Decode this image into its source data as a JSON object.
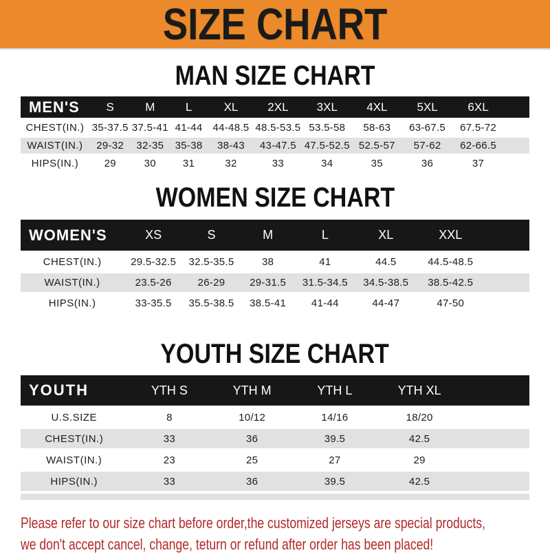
{
  "banner": {
    "title": "SIZE CHART"
  },
  "colors": {
    "banner_bg": "#EC8A2B",
    "banner_text": "#1A1A1A",
    "table_header_bg": "#171717",
    "table_header_text": "#FFFFFF",
    "row_stripe_bg": "#E1E1E1",
    "footer_text": "#B22A2A"
  },
  "sections": [
    {
      "id": "men",
      "heading": "MAN SIZE CHART",
      "header_label": "MEN'S",
      "columns": [
        "S",
        "M",
        "L",
        "XL",
        "2XL",
        "3XL",
        "4XL",
        "5XL",
        "6XL"
      ],
      "rows": [
        {
          "label": "CHEST(IN.)",
          "values": [
            "35-37.5",
            "37.5-41",
            "41-44",
            "44-48.5",
            "48.5-53.5",
            "53.5-58",
            "58-63",
            "63-67.5",
            "67.5-72"
          ]
        },
        {
          "label": "WAIST(IN.)",
          "values": [
            "29-32",
            "32-35",
            "35-38",
            "38-43",
            "43-47.5",
            "47.5-52.5",
            "52.5-57",
            "57-62",
            "62-66.5"
          ]
        },
        {
          "label": "HIPS(IN.)",
          "values": [
            "29",
            "30",
            "31",
            "32",
            "33",
            "34",
            "35",
            "36",
            "37"
          ]
        }
      ]
    },
    {
      "id": "women",
      "heading": "WOMEN SIZE CHART",
      "header_label": "WOMEN'S",
      "columns": [
        "XS",
        "S",
        "M",
        "L",
        "XL",
        "XXL"
      ],
      "rows": [
        {
          "label": "CHEST(IN.)",
          "values": [
            "29.5-32.5",
            "32.5-35.5",
            "38",
            "41",
            "44.5",
            "44.5-48.5"
          ]
        },
        {
          "label": "WAIST(IN.)",
          "values": [
            "23.5-26",
            "26-29",
            "29-31.5",
            "31.5-34.5",
            "34.5-38.5",
            "38.5-42.5"
          ]
        },
        {
          "label": "HIPS(IN.)",
          "values": [
            "33-35.5",
            "35.5-38.5",
            "38.5-41",
            "41-44",
            "44-47",
            "47-50"
          ]
        }
      ]
    },
    {
      "id": "youth",
      "heading": "YOUTH SIZE CHART",
      "header_label": "YOUTH",
      "columns": [
        "YTH S",
        "YTH M",
        "YTH L",
        "YTH XL"
      ],
      "rows": [
        {
          "label": "U.S.SIZE",
          "values": [
            "8",
            "10/12",
            "14/16",
            "18/20"
          ]
        },
        {
          "label": "CHEST(IN.)",
          "values": [
            "33",
            "36",
            "39.5",
            "42.5"
          ]
        },
        {
          "label": "WAIST(IN.)",
          "values": [
            "23",
            "25",
            "27",
            "29"
          ]
        },
        {
          "label": "HIPS(IN.)",
          "values": [
            "33",
            "36",
            "39.5",
            "42.5"
          ]
        }
      ]
    }
  ],
  "footer": {
    "line1": "Please refer to our size chart before order,the customized jerseys are special products,",
    "line2": "we don't accept cancel, change, teturn or refund after order has been placed!"
  }
}
